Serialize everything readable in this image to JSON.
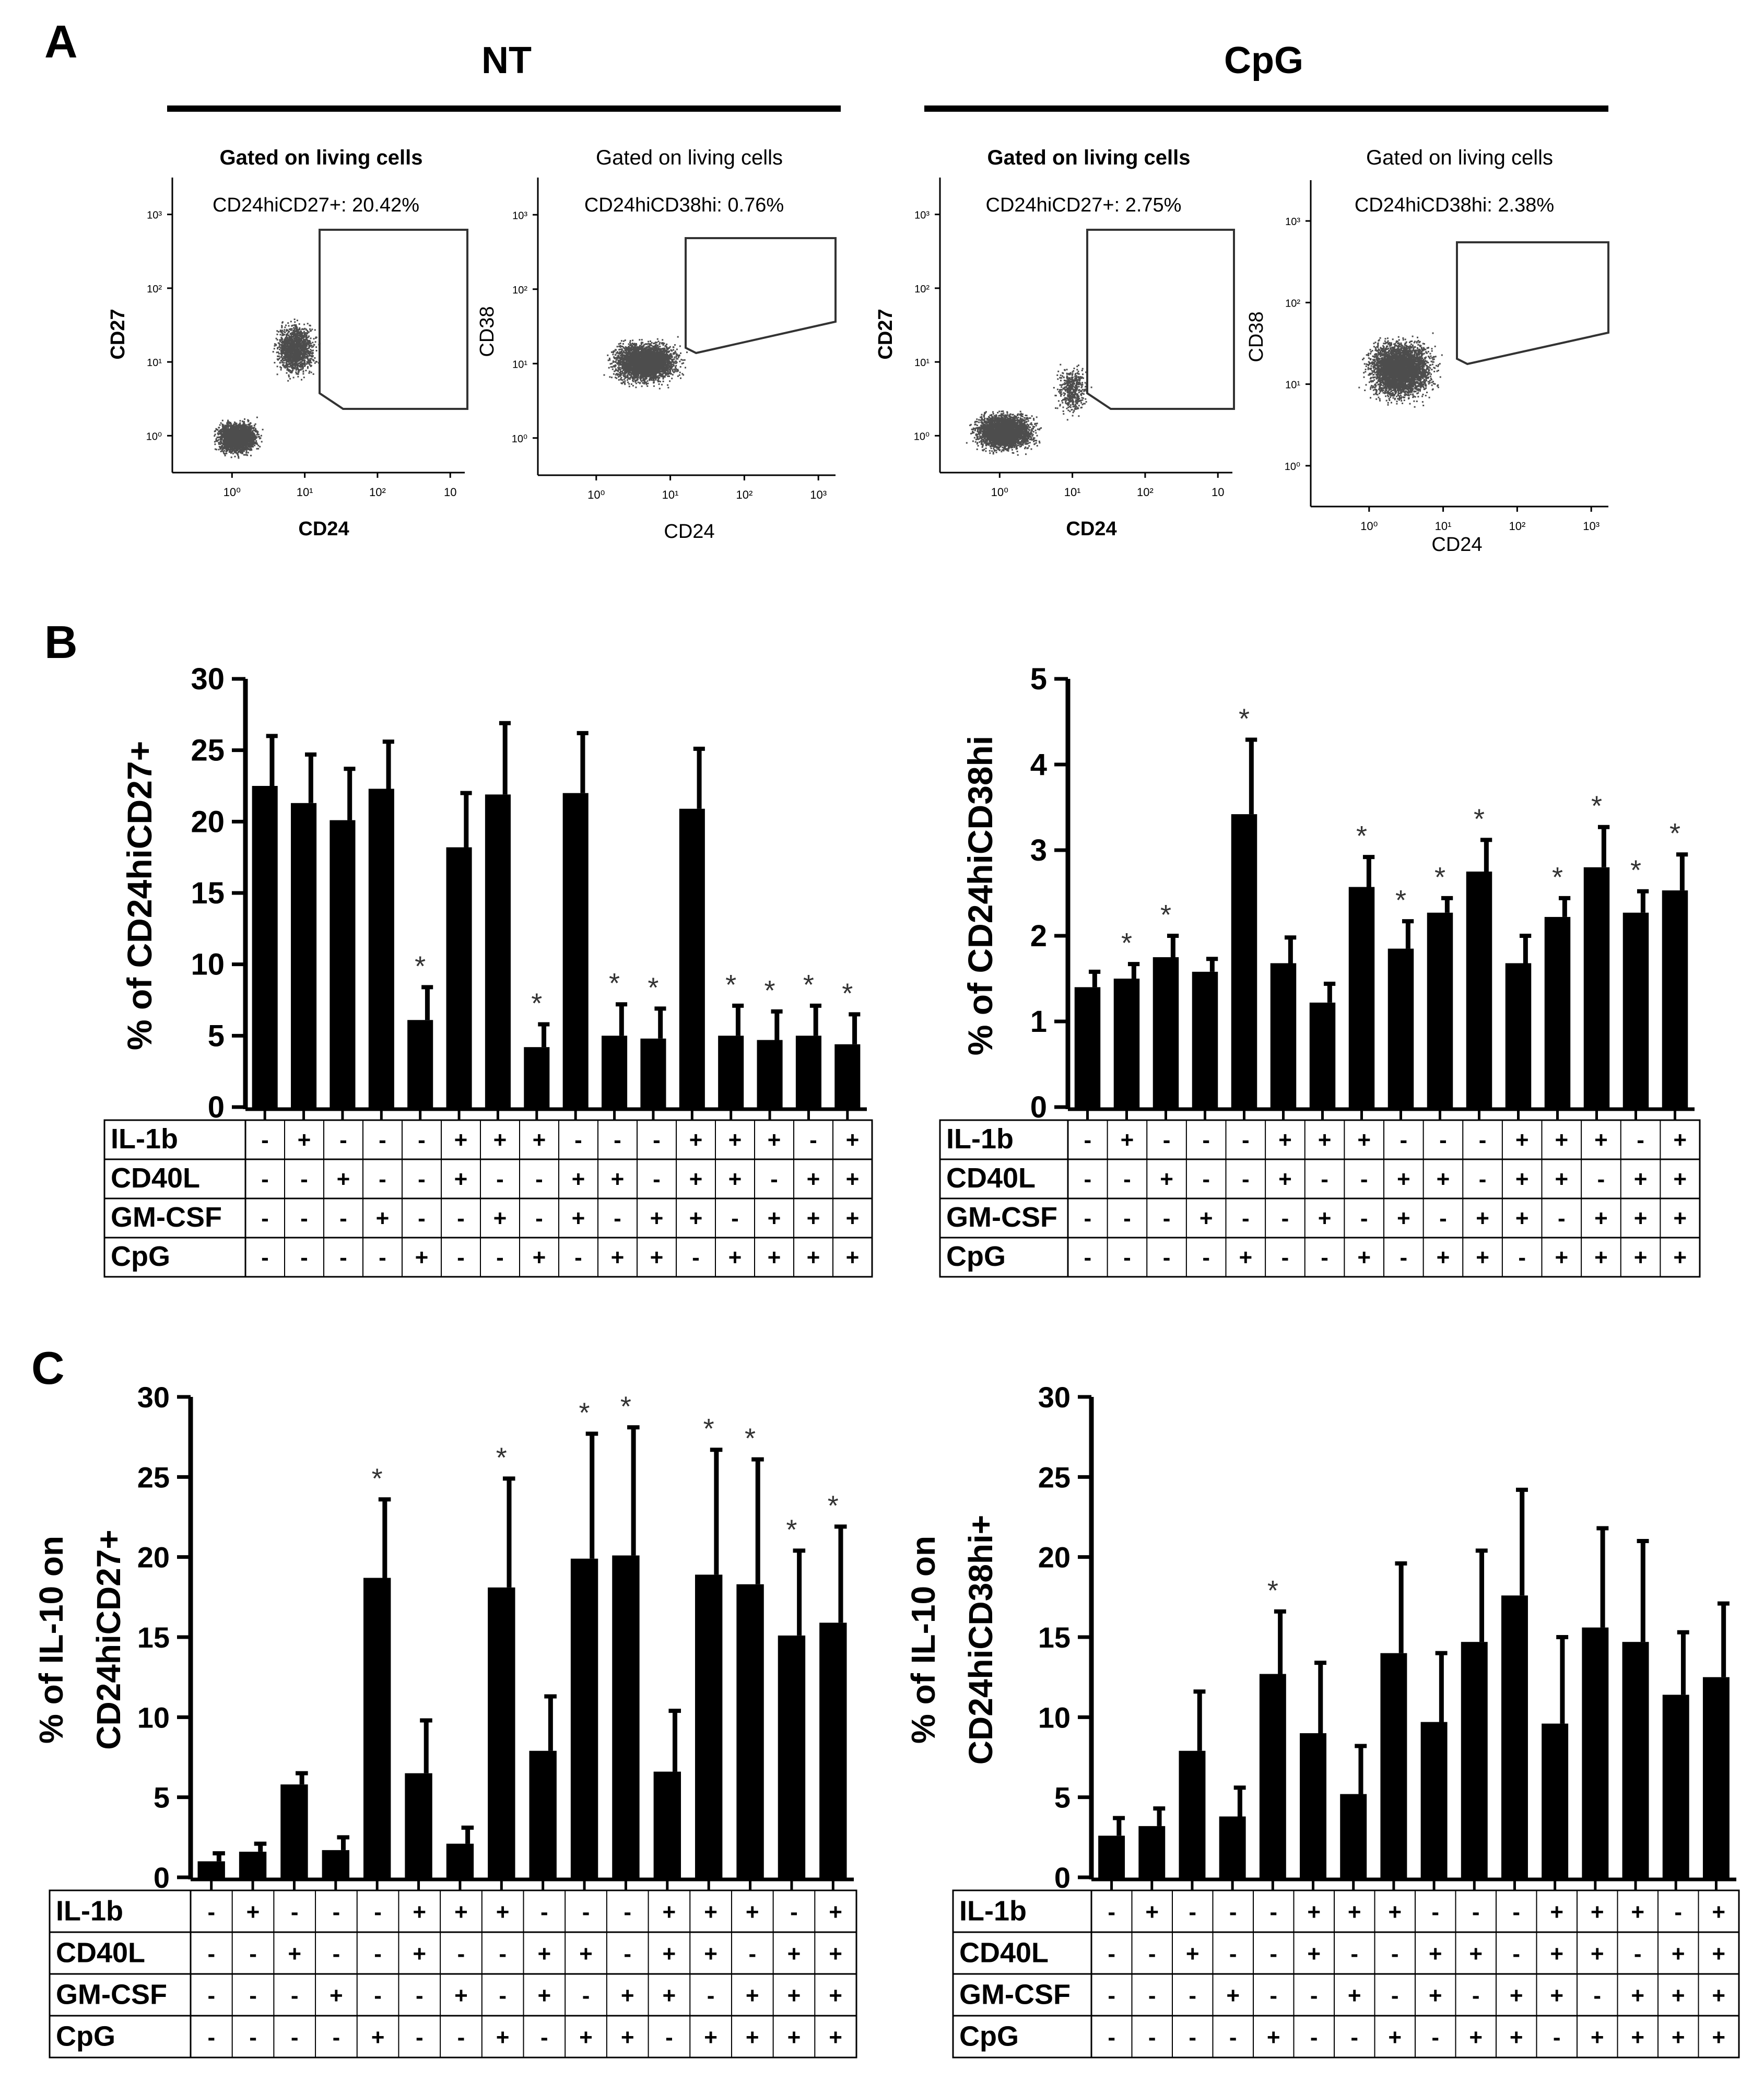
{
  "panel_labels": {
    "a": "A",
    "b": "B",
    "c": "C"
  },
  "group_headers": {
    "nt": "NT",
    "cpg": "CpG"
  },
  "colors": {
    "bar": "#000000",
    "dots": "#4d4d4d",
    "background": "#ffffff"
  },
  "flow_plots": [
    {
      "gate_title": "Gated on living cells",
      "stat": "CD24hiCD27+: 20.42%",
      "xlabel": "CD24",
      "ylabel": "CD27",
      "x_ticks": [
        "10⁰",
        "10¹",
        "10²",
        "10"
      ],
      "y_ticks": [
        "10⁰",
        "10¹",
        "10²",
        "10³"
      ]
    },
    {
      "gate_title": "Gated on living cells",
      "stat": "CD24hiCD38hi: 0.76%",
      "xlabel": "CD24",
      "ylabel": "CD38",
      "x_ticks": [
        "10⁰",
        "10¹",
        "10²",
        "10³"
      ],
      "y_ticks": [
        "10⁰",
        "10¹",
        "10²",
        "10³"
      ]
    },
    {
      "gate_title": "Gated on living cells",
      "stat": "CD24hiCD27+: 2.75%",
      "xlabel": "CD24",
      "ylabel": "CD27",
      "x_ticks": [
        "10⁰",
        "10¹",
        "10²",
        "10"
      ],
      "y_ticks": [
        "10⁰",
        "10¹",
        "10²",
        "10³"
      ]
    },
    {
      "gate_title": "Gated on living cells",
      "stat": "CD24hiCD38hi: 2.38%",
      "xlabel": "CD24",
      "ylabel": "CD38",
      "x_ticks": [
        "10⁰",
        "10¹",
        "10²",
        "10³"
      ],
      "y_ticks": [
        "10⁰",
        "10¹",
        "10²",
        "10³"
      ]
    }
  ],
  "condition_table": {
    "rows": [
      {
        "label": "IL-1b",
        "signs": [
          "-",
          "+",
          "-",
          "-",
          "-",
          "+",
          "+",
          "+",
          "-",
          "-",
          "-",
          "+",
          "+",
          "+",
          "-",
          "+"
        ]
      },
      {
        "label": "CD40L",
        "signs": [
          "-",
          "-",
          "+",
          "-",
          "-",
          "+",
          "-",
          "-",
          "+",
          "+",
          "-",
          "+",
          "+",
          "-",
          "+",
          "+"
        ]
      },
      {
        "label": "GM-CSF",
        "signs": [
          "-",
          "-",
          "-",
          "+",
          "-",
          "-",
          "+",
          "-",
          "+",
          "-",
          "+",
          "+",
          "-",
          "+",
          "+",
          "+"
        ]
      },
      {
        "label": "CpG",
        "signs": [
          "-",
          "-",
          "-",
          "-",
          "+",
          "-",
          "-",
          "+",
          "-",
          "+",
          "+",
          "-",
          "+",
          "+",
          "+",
          "+"
        ]
      }
    ]
  },
  "chart_data": [
    {
      "type": "bar",
      "panel": "B",
      "title": "",
      "xlabel": "",
      "ylabel": "% of CD24hiCD27+",
      "ylim": [
        0,
        30
      ],
      "yticks": [
        0,
        5,
        10,
        15,
        20,
        25,
        30
      ],
      "values": [
        22.5,
        21.3,
        20.1,
        22.3,
        6.1,
        18.2,
        21.9,
        4.2,
        22.0,
        5.0,
        4.8,
        20.9,
        5.0,
        4.7,
        5.0,
        4.4
      ],
      "errors": [
        3.5,
        3.4,
        3.6,
        3.3,
        2.3,
        3.8,
        5.0,
        1.6,
        4.2,
        2.2,
        2.1,
        4.2,
        2.1,
        2.0,
        2.1,
        2.1
      ],
      "significant": [
        false,
        false,
        false,
        false,
        true,
        false,
        false,
        true,
        false,
        true,
        true,
        false,
        true,
        true,
        true,
        true
      ],
      "marker": "*"
    },
    {
      "type": "bar",
      "panel": "B",
      "title": "",
      "xlabel": "",
      "ylabel": "% of CD24hiCD38hi",
      "ylim": [
        0,
        5
      ],
      "yticks": [
        0,
        1,
        2,
        3,
        4,
        5
      ],
      "values": [
        1.4,
        1.5,
        1.75,
        1.58,
        3.42,
        1.68,
        1.22,
        2.57,
        1.85,
        2.27,
        2.75,
        1.68,
        2.22,
        2.8,
        2.27,
        2.53
      ],
      "errors": [
        0.18,
        0.17,
        0.25,
        0.15,
        0.87,
        0.3,
        0.22,
        0.35,
        0.32,
        0.17,
        0.37,
        0.32,
        0.22,
        0.47,
        0.25,
        0.42
      ],
      "significant": [
        false,
        true,
        true,
        false,
        true,
        false,
        false,
        true,
        true,
        true,
        true,
        false,
        true,
        true,
        true,
        true
      ],
      "marker": "*"
    },
    {
      "type": "bar",
      "panel": "C",
      "title": "",
      "xlabel": "",
      "ylabel": "% of IL-10 on CD24hiCD27+",
      "ylim": [
        0,
        30
      ],
      "yticks": [
        0,
        5,
        10,
        15,
        20,
        25,
        30
      ],
      "values": [
        1.0,
        1.6,
        5.8,
        1.7,
        18.7,
        6.5,
        2.1,
        18.1,
        7.9,
        19.9,
        20.1,
        6.6,
        18.9,
        18.3,
        15.1,
        15.9
      ],
      "errors": [
        0.5,
        0.5,
        0.7,
        0.8,
        4.9,
        3.3,
        1.0,
        6.8,
        3.4,
        7.8,
        8.0,
        3.8,
        7.8,
        7.8,
        5.3,
        6.0
      ],
      "significant": [
        false,
        false,
        false,
        false,
        true,
        false,
        false,
        true,
        false,
        true,
        true,
        false,
        true,
        true,
        true,
        true
      ],
      "marker": "*"
    },
    {
      "type": "bar",
      "panel": "C",
      "title": "",
      "xlabel": "",
      "ylabel": "% of IL-10 on CD24hiCD38hi+",
      "ylim": [
        0,
        30
      ],
      "yticks": [
        0,
        5,
        10,
        15,
        20,
        25,
        30
      ],
      "values": [
        2.6,
        3.2,
        7.9,
        3.8,
        12.7,
        9.0,
        5.2,
        14.0,
        9.7,
        14.7,
        17.6,
        9.6,
        15.6,
        14.7,
        11.4,
        12.5
      ],
      "errors": [
        1.1,
        1.1,
        3.7,
        1.8,
        3.9,
        4.4,
        3.0,
        5.6,
        4.3,
        5.7,
        6.6,
        5.4,
        6.2,
        6.3,
        3.9,
        4.6
      ],
      "significant": [
        false,
        false,
        false,
        false,
        true,
        false,
        false,
        false,
        false,
        false,
        false,
        false,
        false,
        false,
        false,
        false
      ],
      "marker": "*"
    }
  ]
}
